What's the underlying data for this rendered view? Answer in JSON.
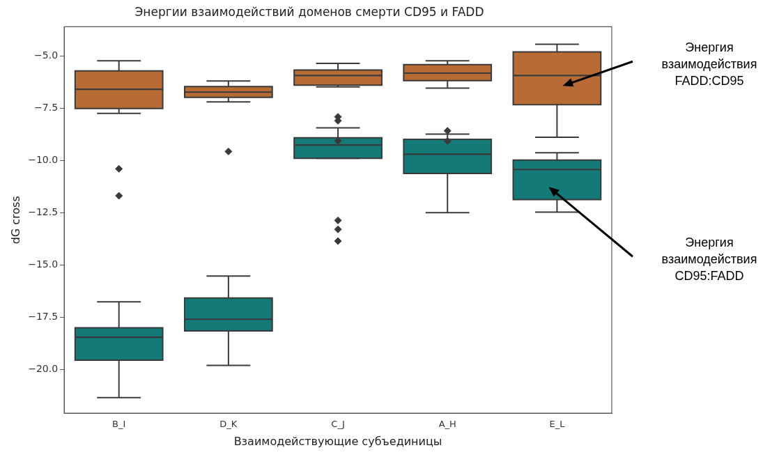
{
  "chart_data": {
    "type": "box",
    "title": "Энергии взаимодействий доменов смерти CD95 и FADD",
    "xlabel": "Взаимодействующие субъединицы",
    "ylabel": "dG cross",
    "categories": [
      "B_I",
      "D_K",
      "C_J",
      "A_H",
      "E_L"
    ],
    "ylim": [
      -22.1,
      -3.6
    ],
    "yticks": [
      {
        "value": -20,
        "label": "−20.0"
      },
      {
        "value": -17.5,
        "label": "−17.5"
      },
      {
        "value": -15,
        "label": "−15.0"
      },
      {
        "value": -12.5,
        "label": "−12.5"
      },
      {
        "value": -10,
        "label": "−10.0"
      },
      {
        "value": -7.5,
        "label": "−7.5"
      },
      {
        "value": -5,
        "label": "−5.0"
      }
    ],
    "legend": false,
    "marker": "diamond",
    "series": [
      {
        "color": "#b96b36",
        "boxes": [
          {
            "low": -7.75,
            "q1": -7.51,
            "median": -6.59,
            "q3": -5.71,
            "high": -5.23,
            "outliers": [
              -10.4,
              -11.69
            ]
          },
          {
            "low": -7.2,
            "q1": -6.98,
            "median": -6.73,
            "q3": -6.46,
            "high": -6.2,
            "outliers": [
              -9.57
            ]
          },
          {
            "low": -6.48,
            "q1": -6.4,
            "median": -5.93,
            "q3": -5.67,
            "high": -5.35
          },
          {
            "low": -6.54,
            "q1": -6.18,
            "median": -5.82,
            "q3": -5.41,
            "high": -5.23
          },
          {
            "low": -8.89,
            "q1": -7.33,
            "median": -5.93,
            "q3": -4.8,
            "high": -4.44
          }
        ]
      },
      {
        "color": "#137a78",
        "boxes": [
          {
            "low": -21.35,
            "q1": -19.56,
            "median": -18.46,
            "q3": -18.01,
            "high": -16.77
          },
          {
            "low": -19.81,
            "q1": -18.16,
            "median": -17.6,
            "q3": -16.58,
            "high": -15.53
          },
          {
            "low": -9.9,
            "q1": -9.9,
            "median": -9.26,
            "q3": -8.91,
            "high": -8.44,
            "outliers": [
              -7.91,
              -8.1,
              -9.06,
              -12.87,
              -13.3,
              -13.86
            ]
          },
          {
            "low": -12.5,
            "q1": -10.62,
            "median": -9.7,
            "q3": -8.99,
            "high": -8.74,
            "outliers": [
              -8.58,
              -9.07
            ]
          },
          {
            "low": -12.47,
            "q1": -11.87,
            "median": -10.43,
            "q3": -9.98,
            "high": -9.63
          }
        ]
      }
    ],
    "annotations": [
      "Энергия взаимодействия FADD:CD95",
      "Энергия взаимодействия CD95:FADD"
    ]
  }
}
